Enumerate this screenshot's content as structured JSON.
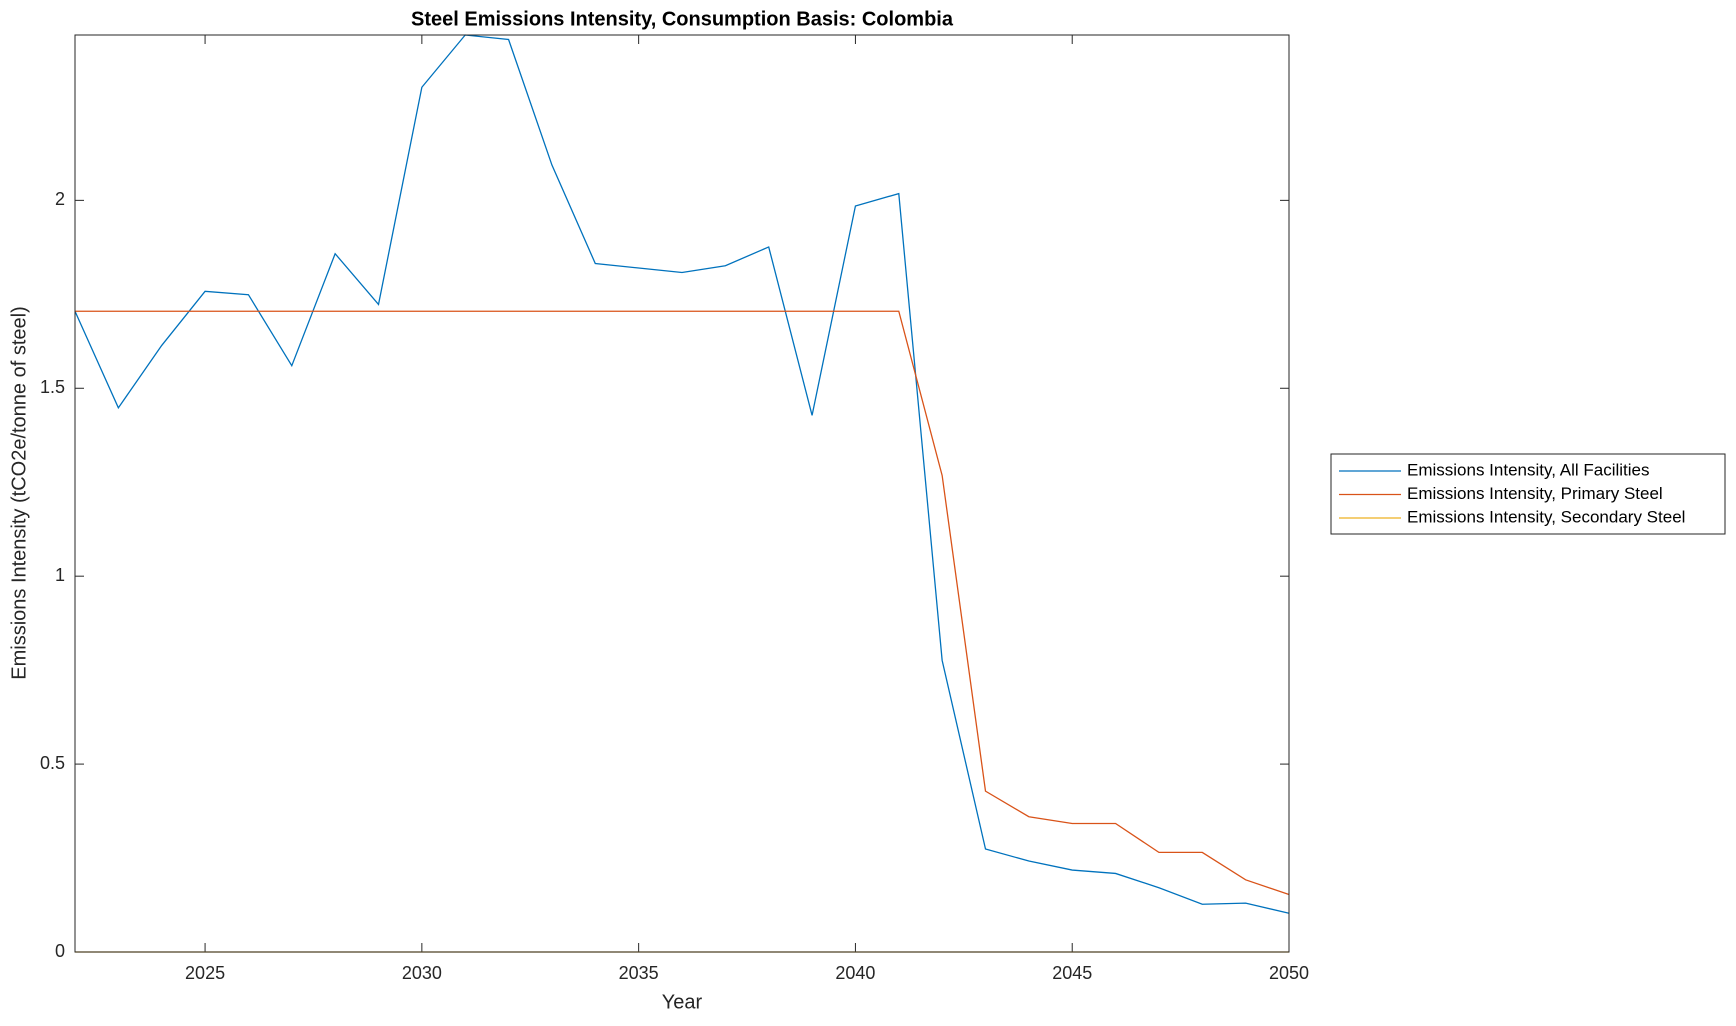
{
  "chart_data": {
    "type": "line",
    "title": "Steel Emissions Intensity, Consumption Basis: Colombia",
    "x_label": "Year",
    "y_label": "Emissions Intensity (tCO2e/tonne of steel)",
    "x": [
      2022,
      2023,
      2024,
      2025,
      2026,
      2027,
      2028,
      2029,
      2030,
      2031,
      2032,
      2033,
      2034,
      2035,
      2036,
      2037,
      2038,
      2039,
      2040,
      2041,
      2042,
      2043,
      2044,
      2045,
      2046,
      2047,
      2048,
      2049,
      2050
    ],
    "series": [
      {
        "name": "Emissions Intensity, All Facilities",
        "color": "#0072bd",
        "values": [
          1.705,
          1.448,
          1.614,
          1.758,
          1.749,
          1.56,
          1.858,
          1.723,
          2.301,
          2.44,
          2.428,
          2.094,
          1.832,
          1.82,
          1.808,
          1.826,
          1.876,
          1.428,
          1.985,
          2.018,
          0.776,
          0.274,
          0.242,
          0.218,
          0.209,
          0.171,
          0.127,
          0.13,
          0.103
        ]
      },
      {
        "name": "Emissions Intensity, Primary Steel",
        "color": "#d95319",
        "values": [
          1.705,
          1.705,
          1.705,
          1.705,
          1.705,
          1.705,
          1.705,
          1.705,
          1.705,
          1.705,
          1.705,
          1.705,
          1.705,
          1.705,
          1.705,
          1.705,
          1.705,
          1.705,
          1.705,
          1.705,
          1.268,
          0.428,
          0.36,
          0.342,
          0.342,
          0.265,
          0.265,
          0.192,
          0.153
        ]
      },
      {
        "name": "Emissions Intensity, Secondary Steel",
        "color": "#edb120",
        "values": [
          0,
          0,
          0,
          0,
          0,
          0,
          0,
          0,
          0,
          0,
          0,
          0,
          0,
          0,
          0,
          0,
          0,
          0,
          0,
          0,
          0,
          0,
          0,
          0,
          0,
          0,
          0,
          0,
          0
        ]
      }
    ],
    "xlim": [
      2022,
      2050
    ],
    "xticks": [
      2025,
      2030,
      2035,
      2040,
      2045,
      2050
    ],
    "ylim": [
      0,
      2.44
    ],
    "yticks": [
      0,
      0.5,
      1,
      1.5,
      2
    ],
    "grid": false,
    "legend": "outside-right"
  }
}
